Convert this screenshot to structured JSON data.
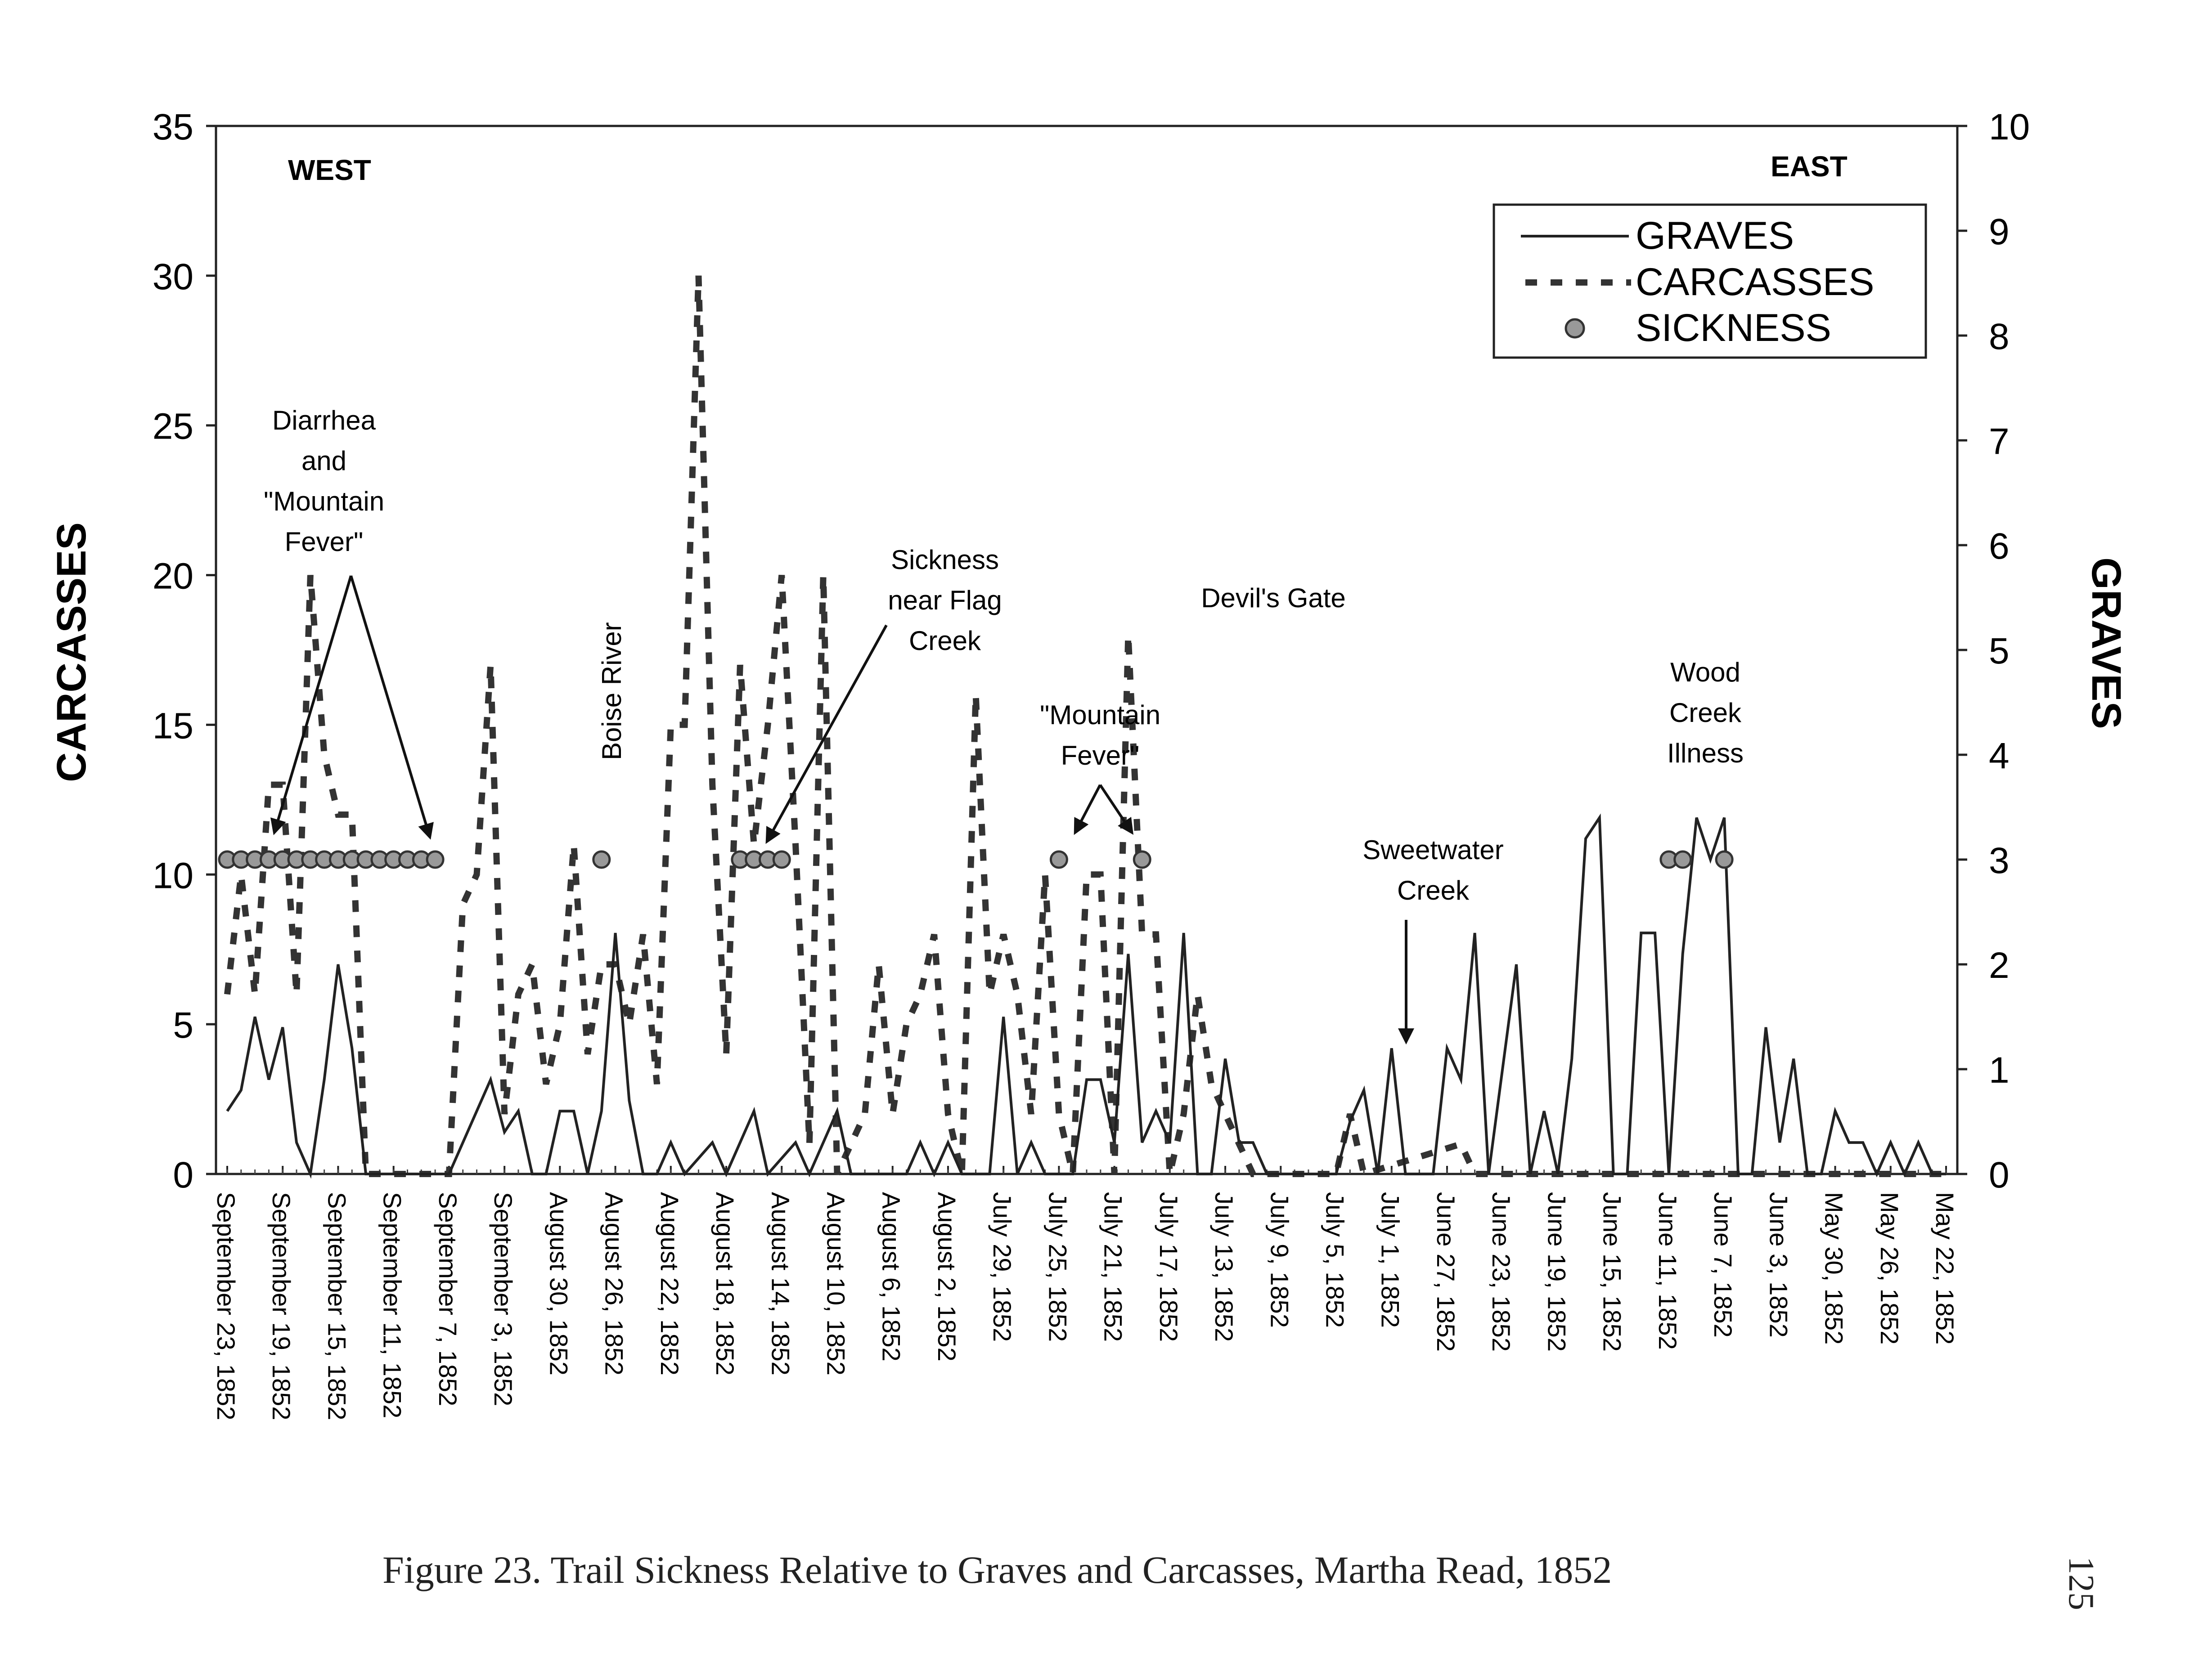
{
  "chart_data": {
    "type": "line",
    "caption": "Figure 23.  Trail Sickness Relative to Graves and Carcasses, Martha Read, 1852",
    "page_number": "125",
    "ylabel_left": "CARCASSES",
    "ylabel_right": "GRAVES",
    "ylim_left": [
      0,
      35
    ],
    "ylim_right": [
      0,
      10
    ],
    "yticks_left": [
      "0",
      "5",
      "10",
      "15",
      "20",
      "25",
      "30",
      "35"
    ],
    "yticks_right": [
      "0",
      "1",
      "2",
      "3",
      "4",
      "5",
      "6",
      "7",
      "8",
      "9",
      "10"
    ],
    "corner_labels": {
      "west": "WEST",
      "east": "EAST"
    },
    "x_day_range": [
      0,
      124
    ],
    "xtick_labels": [
      "September 23, 1852",
      "September 19, 1852",
      "September 15, 1852",
      "September 11, 1852",
      "September 7, 1852",
      "September 3, 1852",
      "August 30, 1852",
      "August 26, 1852",
      "August 22, 1852",
      "August 18, 1852",
      "August 14, 1852",
      "August 10, 1852",
      "August 6, 1852",
      "August 2, 1852",
      "July 29, 1852",
      "July 25, 1852",
      "July 21, 1852",
      "July 17, 1852",
      "July 13, 1852",
      "July 9, 1852",
      "July 5, 1852",
      "July 1, 1852",
      "June 27, 1852",
      "June 23, 1852",
      "June 19, 1852",
      "June 15, 1852",
      "June 11, 1852",
      "June 7, 1852",
      "June 3, 1852",
      "May 30, 1852",
      "May 26, 1852",
      "May 22, 1852"
    ],
    "legend": {
      "graves": "GRAVES",
      "carcasses": "CARCASSES",
      "sickness": "SICKNESS"
    },
    "series": [
      {
        "name": "GRAVES",
        "axis": "right",
        "style": "solid",
        "points": [
          [
            0,
            0.6
          ],
          [
            1,
            0.8
          ],
          [
            2,
            1.5
          ],
          [
            3,
            0.9
          ],
          [
            4,
            1.4
          ],
          [
            5,
            0.3
          ],
          [
            6,
            0
          ],
          [
            7,
            0.9
          ],
          [
            8,
            2.0
          ],
          [
            9,
            1.2
          ],
          [
            10,
            0
          ],
          [
            11,
            0
          ],
          [
            12,
            0
          ],
          [
            13,
            0
          ],
          [
            14,
            0
          ],
          [
            15,
            0
          ],
          [
            16,
            0
          ],
          [
            17,
            0
          ],
          [
            18,
            0
          ],
          [
            19,
            0.9
          ],
          [
            20,
            0.4
          ],
          [
            21,
            0.6
          ],
          [
            22,
            0
          ],
          [
            23,
            0
          ],
          [
            24,
            0.6
          ],
          [
            25,
            0.6
          ],
          [
            26,
            0
          ],
          [
            27,
            0.6
          ],
          [
            28,
            2.3
          ],
          [
            29,
            0.7
          ],
          [
            30,
            0
          ],
          [
            31,
            0
          ],
          [
            32,
            0.3
          ],
          [
            33,
            0
          ],
          [
            34,
            0
          ],
          [
            35,
            0.3
          ],
          [
            36,
            0
          ],
          [
            37,
            0
          ],
          [
            38,
            0.6
          ],
          [
            39,
            0
          ],
          [
            40,
            0
          ],
          [
            41,
            0.3
          ],
          [
            42,
            0
          ],
          [
            43,
            0
          ],
          [
            44,
            0.6
          ],
          [
            45,
            0
          ],
          [
            46,
            0
          ],
          [
            47,
            0
          ],
          [
            48,
            0
          ],
          [
            49,
            0
          ],
          [
            50,
            0
          ],
          [
            51,
            0
          ],
          [
            52,
            0
          ],
          [
            53,
            0
          ],
          [
            54,
            0
          ],
          [
            55,
            0
          ],
          [
            56,
            0
          ],
          [
            57,
            0
          ],
          [
            58,
            0
          ],
          [
            59,
            0
          ],
          [
            60,
            0.3
          ],
          [
            61,
            0
          ],
          [
            62,
            0.3
          ],
          [
            63,
            0
          ],
          [
            64,
            0
          ],
          [
            65,
            0
          ],
          [
            66,
            0
          ],
          [
            67,
            0
          ],
          [
            68,
            0
          ],
          [
            69,
            1.5
          ],
          [
            70,
            0
          ],
          [
            71,
            0
          ],
          [
            72,
            0.3
          ],
          [
            73,
            0
          ],
          [
            74,
            0
          ],
          [
            75,
            0
          ],
          [
            76,
            0
          ],
          [
            77,
            0
          ],
          [
            78,
            0
          ],
          [
            79,
            0
          ],
          [
            80,
            0
          ],
          [
            81,
            0
          ],
          [
            82,
            0
          ],
          [
            83,
            0
          ],
          [
            84,
            0
          ],
          [
            85,
            0
          ],
          [
            86,
            0.3
          ],
          [
            87,
            0
          ],
          [
            88,
            0
          ],
          [
            89,
            0
          ],
          [
            90,
            0
          ],
          [
            91,
            0
          ],
          [
            92,
            0
          ],
          [
            93,
            0
          ],
          [
            94,
            0
          ],
          [
            95,
            0
          ],
          [
            96,
            0
          ],
          [
            97,
            0
          ],
          [
            98,
            0
          ],
          [
            99,
            0
          ],
          [
            100,
            0
          ],
          [
            101,
            0
          ],
          [
            102,
            0
          ],
          [
            103,
            0
          ],
          [
            104,
            0
          ],
          [
            105,
            0
          ],
          [
            106,
            0
          ],
          [
            107,
            0
          ],
          [
            108,
            0
          ],
          [
            109,
            0
          ],
          [
            110,
            0
          ],
          [
            111,
            0
          ],
          [
            112,
            0
          ],
          [
            113,
            0
          ],
          [
            114,
            0
          ],
          [
            115,
            0
          ],
          [
            116,
            0
          ],
          [
            117,
            0
          ],
          [
            118,
            0
          ],
          [
            119,
            0
          ],
          [
            120,
            0
          ],
          [
            121,
            0
          ],
          [
            122,
            0
          ],
          [
            123,
            0
          ],
          [
            124,
            0
          ]
        ]
      },
      {
        "name": "GRAVES_EAST",
        "axis": "right",
        "style": "solid",
        "points": [
          [
            64,
            0
          ],
          [
            65,
            0.6
          ],
          [
            66,
            0.9
          ],
          [
            67,
            0.9
          ],
          [
            68,
            0
          ],
          [
            69,
            0
          ],
          [
            70,
            0
          ],
          [
            71,
            0
          ],
          [
            72,
            0
          ],
          [
            73,
            0
          ],
          [
            74,
            0
          ],
          [
            75,
            0
          ],
          [
            76,
            0
          ],
          [
            77,
            0
          ],
          [
            78,
            0
          ],
          [
            79,
            0
          ],
          [
            80,
            0
          ],
          [
            81,
            0
          ],
          [
            82,
            0
          ],
          [
            83,
            0
          ],
          [
            84,
            0
          ],
          [
            85,
            0
          ],
          [
            86,
            0
          ],
          [
            87,
            0
          ],
          [
            88,
            0
          ],
          [
            89,
            0
          ],
          [
            90,
            0
          ]
        ]
      }
    ],
    "graves": [
      [
        0,
        0.6
      ],
      [
        1,
        0.8
      ],
      [
        2,
        1.5
      ],
      [
        3,
        0.9
      ],
      [
        4,
        1.4
      ],
      [
        5,
        0.3
      ],
      [
        6,
        0
      ],
      [
        7,
        0.9
      ],
      [
        8,
        2.0
      ],
      [
        9,
        1.2
      ],
      [
        10,
        0
      ],
      [
        16,
        0
      ],
      [
        19,
        0.9
      ],
      [
        20,
        0.4
      ],
      [
        21,
        0.6
      ],
      [
        22,
        0
      ],
      [
        23,
        0
      ],
      [
        24,
        0.6
      ],
      [
        25,
        0.6
      ],
      [
        26,
        0
      ],
      [
        27,
        0.6
      ],
      [
        28,
        2.3
      ],
      [
        29,
        0.7
      ],
      [
        30,
        0
      ],
      [
        31,
        0
      ],
      [
        32,
        0.3
      ],
      [
        33,
        0
      ],
      [
        35,
        0.3
      ],
      [
        36,
        0
      ],
      [
        38,
        0.6
      ],
      [
        39,
        0
      ],
      [
        41,
        0.3
      ],
      [
        42,
        0
      ],
      [
        44,
        0.6
      ],
      [
        45,
        0
      ],
      [
        49,
        0
      ],
      [
        50,
        0.3
      ],
      [
        51,
        0
      ],
      [
        52,
        0.3
      ],
      [
        53,
        0
      ],
      [
        55,
        0
      ],
      [
        56,
        1.5
      ],
      [
        57,
        0
      ],
      [
        58,
        0.3
      ],
      [
        59,
        0
      ],
      [
        61,
        0
      ],
      [
        62,
        0.9
      ],
      [
        63,
        0.9
      ],
      [
        64,
        0.3
      ],
      [
        65,
        2.1
      ],
      [
        66,
        0.3
      ],
      [
        67,
        0.6
      ],
      [
        68,
        0.3
      ],
      [
        69,
        2.3
      ],
      [
        70,
        0
      ],
      [
        71,
        0
      ],
      [
        72,
        1.1
      ],
      [
        73,
        0.3
      ],
      [
        74,
        0.3
      ],
      [
        75,
        0
      ],
      [
        80,
        0
      ],
      [
        81,
        0.5
      ],
      [
        82,
        0.8
      ],
      [
        83,
        0
      ],
      [
        84,
        1.2
      ],
      [
        85,
        0
      ],
      [
        86,
        0
      ],
      [
        87,
        0
      ],
      [
        88,
        1.2
      ],
      [
        89,
        0.9
      ],
      [
        90,
        2.3
      ],
      [
        91,
        0
      ],
      [
        92,
        1.0
      ],
      [
        93,
        2.0
      ],
      [
        94,
        0
      ],
      [
        95,
        0.6
      ],
      [
        96,
        0
      ],
      [
        97,
        1.1
      ],
      [
        98,
        3.2
      ],
      [
        99,
        3.4
      ],
      [
        100,
        0
      ],
      [
        101,
        0
      ],
      [
        102,
        2.3
      ],
      [
        103,
        2.3
      ],
      [
        104,
        0
      ],
      [
        105,
        2.1
      ],
      [
        106,
        3.4
      ],
      [
        107,
        3.0
      ],
      [
        108,
        3.4
      ],
      [
        109,
        0
      ],
      [
        110,
        0
      ],
      [
        111,
        1.4
      ],
      [
        112,
        0.3
      ],
      [
        113,
        1.1
      ],
      [
        114,
        0
      ],
      [
        115,
        0
      ],
      [
        116,
        0.6
      ],
      [
        117,
        0.3
      ],
      [
        118,
        0.3
      ],
      [
        119,
        0
      ],
      [
        120,
        0.3
      ],
      [
        121,
        0
      ],
      [
        122,
        0.3
      ],
      [
        123,
        0
      ],
      [
        124,
        0
      ]
    ],
    "carcasses": [
      [
        0,
        6
      ],
      [
        1,
        10
      ],
      [
        2,
        6
      ],
      [
        3,
        13
      ],
      [
        4,
        13
      ],
      [
        5,
        6
      ],
      [
        6,
        20
      ],
      [
        7,
        14
      ],
      [
        8,
        12
      ],
      [
        9,
        12
      ],
      [
        10,
        0
      ],
      [
        11,
        0
      ],
      [
        16,
        0
      ],
      [
        17,
        9
      ],
      [
        18,
        10
      ],
      [
        19,
        17
      ],
      [
        20,
        2
      ],
      [
        21,
        6
      ],
      [
        22,
        7
      ],
      [
        23,
        3
      ],
      [
        24,
        5
      ],
      [
        25,
        11
      ],
      [
        26,
        4
      ],
      [
        27,
        7
      ],
      [
        28,
        7
      ],
      [
        29,
        5
      ],
      [
        30,
        8
      ],
      [
        31,
        3
      ],
      [
        32,
        15
      ],
      [
        33,
        15
      ],
      [
        34,
        30
      ],
      [
        35,
        13
      ],
      [
        36,
        4
      ],
      [
        37,
        17
      ],
      [
        38,
        11
      ],
      [
        39,
        15
      ],
      [
        40,
        20
      ],
      [
        41,
        11
      ],
      [
        42,
        1
      ],
      [
        43,
        20
      ],
      [
        44,
        0
      ],
      [
        45,
        1
      ],
      [
        46,
        2
      ],
      [
        47,
        7
      ],
      [
        48,
        2
      ],
      [
        49,
        5
      ],
      [
        50,
        6
      ],
      [
        51,
        8
      ],
      [
        52,
        2
      ],
      [
        53,
        0
      ],
      [
        54,
        16
      ],
      [
        55,
        6
      ],
      [
        56,
        8
      ],
      [
        57,
        6
      ],
      [
        58,
        2
      ],
      [
        59,
        10
      ],
      [
        60,
        2
      ],
      [
        61,
        0
      ],
      [
        62,
        10
      ],
      [
        63,
        10
      ],
      [
        64,
        0
      ],
      [
        65,
        18
      ],
      [
        66,
        8
      ],
      [
        67,
        8
      ],
      [
        68,
        0
      ],
      [
        69,
        2
      ],
      [
        70,
        6
      ],
      [
        71,
        3
      ],
      [
        72,
        2
      ],
      [
        73,
        1
      ],
      [
        74,
        0
      ],
      [
        75,
        0
      ],
      [
        80,
        0
      ],
      [
        81,
        2
      ],
      [
        82,
        0
      ],
      [
        89,
        1
      ],
      [
        90,
        0
      ],
      [
        124,
        0
      ]
    ],
    "sickness": [
      [
        0,
        3
      ],
      [
        1,
        3
      ],
      [
        2,
        3
      ],
      [
        3,
        3
      ],
      [
        4,
        3
      ],
      [
        5,
        3
      ],
      [
        6,
        3
      ],
      [
        7,
        3
      ],
      [
        8,
        3
      ],
      [
        9,
        3
      ],
      [
        10,
        3
      ],
      [
        11,
        3
      ],
      [
        12,
        3
      ],
      [
        13,
        3
      ],
      [
        14,
        3
      ],
      [
        15,
        3
      ],
      [
        27,
        3
      ],
      [
        37,
        3
      ],
      [
        38,
        3
      ],
      [
        39,
        3
      ],
      [
        40,
        3
      ],
      [
        60,
        3
      ],
      [
        66,
        3
      ],
      [
        104,
        3
      ],
      [
        105,
        3
      ],
      [
        108,
        3
      ]
    ],
    "annotations": [
      {
        "text": [
          "Diarrhea",
          "and",
          "\"Mountain",
          "Fever\""
        ]
      },
      {
        "text": [
          "Boise River"
        ]
      },
      {
        "text": [
          "Sickness",
          "near Flag",
          "Creek"
        ]
      },
      {
        "text": [
          "\"Mountain",
          "Fever\""
        ]
      },
      {
        "text": [
          "Devil's Gate"
        ]
      },
      {
        "text": [
          "Sweetwater",
          "Creek"
        ]
      },
      {
        "text": [
          "Wood",
          "Creek",
          "Illness"
        ]
      }
    ]
  }
}
